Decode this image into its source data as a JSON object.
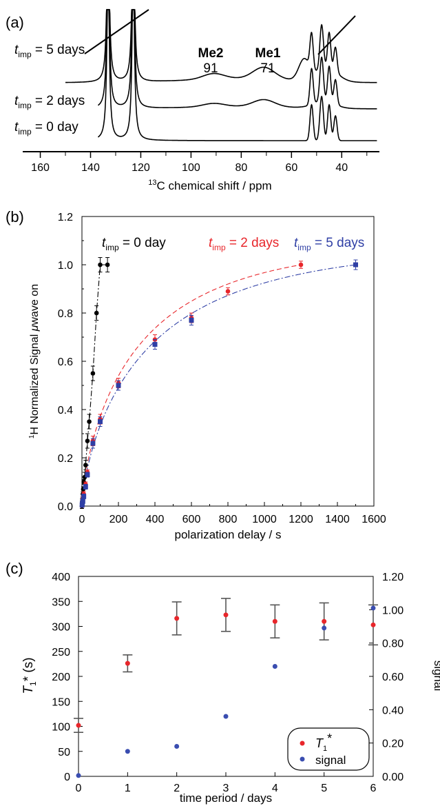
{
  "chart_data": [
    {
      "panel_label": "(a)",
      "type": "line",
      "xlabel": "¹³C chemical shift / ppm",
      "xlabel_parts": [
        "13",
        "C chemical shift / ppm"
      ],
      "xlim": [
        167,
        25
      ],
      "x_reversed": true,
      "xticks": [
        160,
        140,
        120,
        100,
        80,
        60,
        40
      ],
      "series": [
        {
          "name": "t_imp = 0 day",
          "label_main": "t",
          "label_sub": "imp",
          "label_rest": " = 0 day"
        },
        {
          "name": "t_imp = 2 days",
          "label_main": "t",
          "label_sub": "imp",
          "label_rest": " = 2 days"
        },
        {
          "name": "t_imp = 5 days",
          "label_main": "t",
          "label_sub": "imp",
          "label_rest": " = 5 days"
        }
      ],
      "annotations": [
        {
          "label": "Me2",
          "value": "91",
          "x": 91
        },
        {
          "label": "Me1",
          "value": "71",
          "x": 71
        }
      ],
      "peaks_ppm": [
        133,
        123,
        52,
        48,
        45,
        42
      ]
    },
    {
      "panel_label": "(b)",
      "type": "scatter",
      "xlabel": "polarization delay / s",
      "ylabel": "¹H Normalized Signal μwave on",
      "ylabel_parts": [
        "1",
        "H Normalized Signal ",
        "μ",
        "wave on"
      ],
      "xlim": [
        0,
        1600
      ],
      "ylim": [
        0,
        1.2
      ],
      "xticks": [
        0,
        200,
        400,
        600,
        800,
        1000,
        1200,
        1400,
        1600
      ],
      "yticks": [
        "0.0",
        "0.2",
        "0.4",
        "0.6",
        "0.8",
        "1.0",
        "1.2"
      ],
      "series": [
        {
          "name": "t_imp = 0 day",
          "label_main": "t",
          "label_sub": "imp",
          "label_rest": " = 0 day",
          "color": "#000000",
          "marker": "circle",
          "line": "dash-dot",
          "x": [
            0,
            1,
            2,
            3,
            5,
            7,
            10,
            15,
            20,
            30,
            40,
            60,
            80,
            100,
            140
          ],
          "y": [
            0.0,
            0.01,
            0.02,
            0.03,
            0.05,
            0.07,
            0.1,
            0.12,
            0.17,
            0.27,
            0.35,
            0.55,
            0.8,
            1.0,
            1.0
          ],
          "err": [
            0.01,
            0.01,
            0.01,
            0.01,
            0.01,
            0.01,
            0.01,
            0.02,
            0.02,
            0.03,
            0.03,
            0.03,
            0.03,
            0.03,
            0.03
          ]
        },
        {
          "name": "t_imp = 2 days",
          "label_main": "t",
          "label_sub": "imp",
          "label_rest": " = 2 days",
          "color": "#e8262b",
          "marker": "circle",
          "line": "dashed",
          "x": [
            1,
            2,
            5,
            10,
            20,
            30,
            60,
            100,
            200,
            400,
            600,
            800,
            1200
          ],
          "y": [
            0.005,
            0.01,
            0.03,
            0.05,
            0.09,
            0.14,
            0.27,
            0.36,
            0.51,
            0.69,
            0.78,
            0.89,
            1.0
          ],
          "err": [
            0.01,
            0.01,
            0.01,
            0.01,
            0.01,
            0.01,
            0.02,
            0.02,
            0.02,
            0.02,
            0.02,
            0.015,
            0.015
          ]
        },
        {
          "name": "t_imp = 5 days",
          "label_main": "t",
          "label_sub": "imp",
          "label_rest": " = 5 days",
          "color": "#2f3fa5",
          "marker": "square",
          "line": "dash-dot",
          "x": [
            1,
            2,
            5,
            10,
            20,
            30,
            60,
            100,
            200,
            400,
            600,
            1500
          ],
          "y": [
            0.005,
            0.01,
            0.02,
            0.04,
            0.08,
            0.13,
            0.26,
            0.35,
            0.5,
            0.67,
            0.77,
            1.0
          ],
          "err": [
            0.01,
            0.01,
            0.01,
            0.01,
            0.01,
            0.01,
            0.02,
            0.02,
            0.02,
            0.02,
            0.02,
            0.02
          ]
        }
      ]
    },
    {
      "panel_label": "(c)",
      "type": "scatter",
      "xlabel": "time period / days",
      "ylabel_left_parts": [
        "T",
        "1",
        "* (s)"
      ],
      "ylabel_right": "signal",
      "xlim": [
        0,
        6
      ],
      "ylim_left": [
        0,
        400
      ],
      "ylim_right": [
        0,
        1.2
      ],
      "xticks": [
        0,
        1,
        2,
        3,
        4,
        5,
        6
      ],
      "yticks_left": [
        0,
        50,
        100,
        150,
        200,
        250,
        300,
        350,
        400
      ],
      "yticks_right": [
        "0.00",
        "0.20",
        "0.40",
        "0.60",
        "0.80",
        "1.00",
        "1.20"
      ],
      "series": [
        {
          "name": "T1*",
          "label_main": "T",
          "label_sub": "1",
          "label_rest": "*",
          "color": "#e8262b",
          "axis": "left",
          "x": [
            0,
            1,
            2,
            3,
            4,
            5,
            6
          ],
          "y": [
            102,
            226,
            316,
            323,
            310,
            310,
            303
          ],
          "err": [
            14,
            17,
            33,
            33,
            33,
            37,
            40
          ]
        },
        {
          "name": "signal",
          "label_main": "signal",
          "label_sub": "",
          "label_rest": "",
          "color": "#3a4db0",
          "axis": "right",
          "x": [
            0,
            1,
            2,
            3,
            4,
            5,
            6
          ],
          "y": [
            0.005,
            0.15,
            0.18,
            0.36,
            0.66,
            0.89,
            1.01
          ]
        }
      ]
    }
  ]
}
